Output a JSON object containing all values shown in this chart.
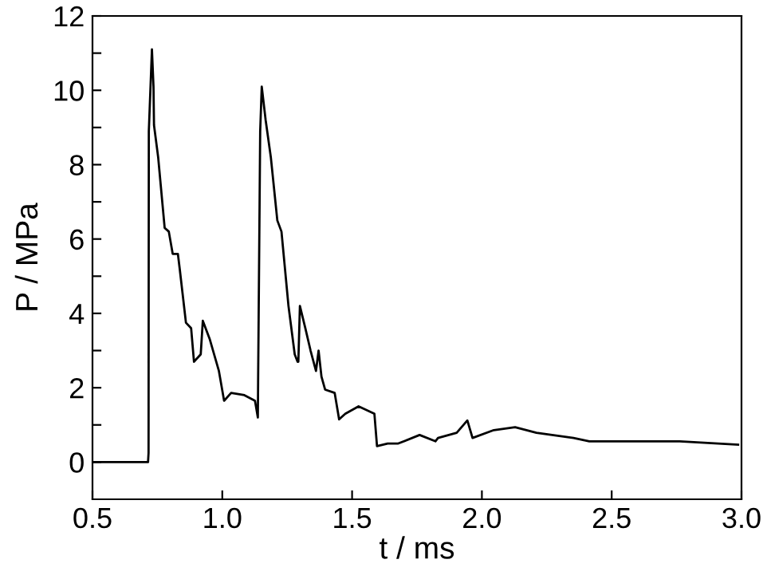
{
  "chart_data": {
    "type": "line",
    "xlabel": "t / ms",
    "ylabel": "P / MPa",
    "series": [
      {
        "color": "#000000",
        "x": [
          0.5,
          0.6,
          0.714,
          0.716,
          0.717,
          0.729,
          0.735,
          0.737,
          0.753,
          0.778,
          0.794,
          0.809,
          0.829,
          0.836,
          0.86,
          0.88,
          0.891,
          0.917,
          0.925,
          0.952,
          0.987,
          1.007,
          1.034,
          1.085,
          1.126,
          1.137,
          1.138,
          1.146,
          1.152,
          1.167,
          1.187,
          1.212,
          1.228,
          1.255,
          1.279,
          1.29,
          1.293,
          1.299,
          1.32,
          1.34,
          1.361,
          1.371,
          1.382,
          1.396,
          1.433,
          1.45,
          1.474,
          1.525,
          1.586,
          1.596,
          1.637,
          1.678,
          1.76,
          1.821,
          1.831,
          1.903,
          1.944,
          1.964,
          2.046,
          2.128,
          2.21,
          2.353,
          2.414,
          2.557,
          2.762,
          2.987
        ],
        "values": [
          0.0,
          0.0,
          0.0,
          0.25,
          8.9,
          11.1,
          10.1,
          9.06,
          8.2,
          6.3,
          6.2,
          5.6,
          5.6,
          5.2,
          3.75,
          3.6,
          2.7,
          2.9,
          3.8,
          3.3,
          2.45,
          1.65,
          1.86,
          1.8,
          1.65,
          1.2,
          2.15,
          8.9,
          10.1,
          9.2,
          8.2,
          6.5,
          6.2,
          4.2,
          2.9,
          2.7,
          2.7,
          4.2,
          3.6,
          3.0,
          2.45,
          3.0,
          2.3,
          1.95,
          1.86,
          1.15,
          1.3,
          1.5,
          1.3,
          0.43,
          0.5,
          0.5,
          0.73,
          0.56,
          0.65,
          0.79,
          1.12,
          0.65,
          0.86,
          0.94,
          0.79,
          0.65,
          0.56,
          0.56,
          0.56,
          0.47
        ]
      }
    ],
    "xlim": [
      0.5,
      3.0
    ],
    "xticks": [
      {
        "value": 0.5,
        "label": "0.5"
      },
      {
        "value": 1.0,
        "label": "1.0"
      },
      {
        "value": 1.5,
        "label": "1.5"
      },
      {
        "value": 2.0,
        "label": "2.0"
      },
      {
        "value": 2.5,
        "label": "2.5"
      },
      {
        "value": 3.0,
        "label": "3.0"
      }
    ],
    "ylim": [
      -1,
      12
    ],
    "yticks": [
      0,
      {
        "value": 1,
        "label": null
      },
      2,
      {
        "value": 3,
        "label": null
      },
      4,
      {
        "value": 5,
        "label": null
      },
      6,
      {
        "value": 7,
        "label": null
      },
      8,
      {
        "value": 9,
        "label": null
      },
      10,
      {
        "value": 11,
        "label": null
      },
      12
    ],
    "grid": false,
    "marker": "none",
    "line_style": "solid"
  }
}
